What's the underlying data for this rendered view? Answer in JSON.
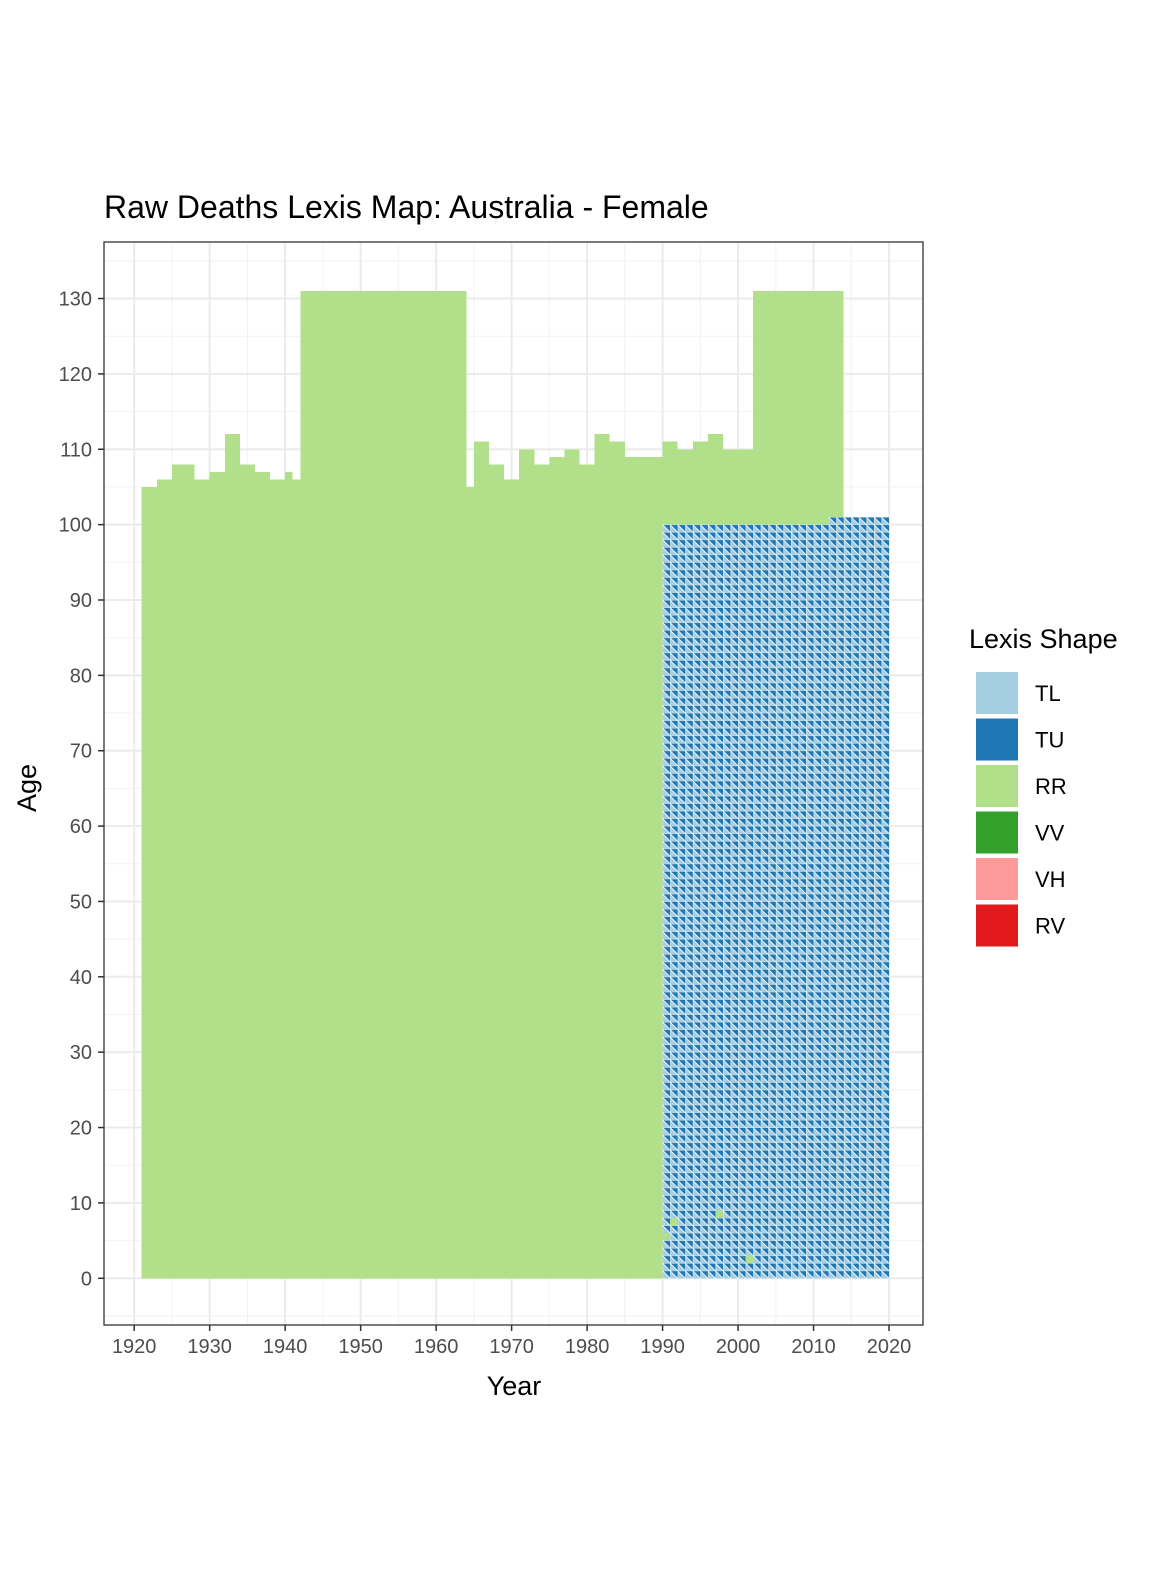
{
  "chart_data": {
    "type": "heatmap",
    "title": "Raw Deaths Lexis Map: Australia - Female",
    "xlabel": "Year",
    "ylabel": "Age",
    "xlim": [
      1916,
      2024.5
    ],
    "ylim": [
      -6.2,
      137.5
    ],
    "x_ticks": [
      1920,
      1930,
      1940,
      1950,
      1960,
      1970,
      1980,
      1990,
      2000,
      2010,
      2020
    ],
    "y_ticks": [
      0,
      10,
      20,
      30,
      40,
      50,
      60,
      70,
      80,
      90,
      100,
      110,
      120,
      130
    ],
    "grid": true,
    "legend": {
      "title": "Lexis Shape",
      "position": "right",
      "items": [
        {
          "label": "TL",
          "color": "#A6CEE3"
        },
        {
          "label": "TU",
          "color": "#1F78B4"
        },
        {
          "label": "RR",
          "color": "#B2DF8A"
        },
        {
          "label": "VV",
          "color": "#33A02C"
        },
        {
          "label": "VH",
          "color": "#FB9A99"
        },
        {
          "label": "RV",
          "color": "#E31A1C"
        }
      ]
    },
    "regions": [
      {
        "shape": "RR",
        "years": [
          1921,
          1942
        ],
        "ages": [
          0,
          103
        ]
      },
      {
        "shape": "RR",
        "years": [
          1942,
          1964
        ],
        "ages": [
          0,
          131
        ]
      },
      {
        "shape": "RR",
        "years": [
          1964,
          1990
        ],
        "ages": [
          0,
          105
        ]
      },
      {
        "shape": "RR",
        "years": [
          1990,
          2002
        ],
        "ages": [
          100,
          110
        ]
      },
      {
        "shape": "RR",
        "years": [
          2002,
          2014
        ],
        "ages": [
          100,
          131
        ]
      },
      {
        "shape": "TL/TU",
        "years": [
          1990,
          2020
        ],
        "ages": [
          0,
          100
        ]
      },
      {
        "shape": "TL/TU",
        "years": [
          2012,
          2020
        ],
        "ages": [
          100,
          101
        ]
      }
    ],
    "upper_edge_top_age": [
      [
        1921,
        105
      ],
      [
        1923,
        106
      ],
      [
        1925,
        108
      ],
      [
        1928,
        106
      ],
      [
        1930,
        107
      ],
      [
        1932,
        112
      ],
      [
        1934,
        108
      ],
      [
        1936,
        107
      ],
      [
        1938,
        106
      ],
      [
        1940,
        107
      ],
      [
        1941,
        106
      ],
      [
        1965,
        111
      ],
      [
        1967,
        108
      ],
      [
        1969,
        106
      ],
      [
        1971,
        110
      ],
      [
        1973,
        108
      ],
      [
        1975,
        109
      ],
      [
        1977,
        110
      ],
      [
        1979,
        108
      ],
      [
        1981,
        112
      ],
      [
        1983,
        111
      ],
      [
        1985,
        109
      ],
      [
        1987,
        109
      ],
      [
        1990,
        111
      ],
      [
        1992,
        110
      ],
      [
        1994,
        111
      ],
      [
        1996,
        112
      ],
      [
        1998,
        110
      ],
      [
        2000,
        110
      ]
    ]
  }
}
